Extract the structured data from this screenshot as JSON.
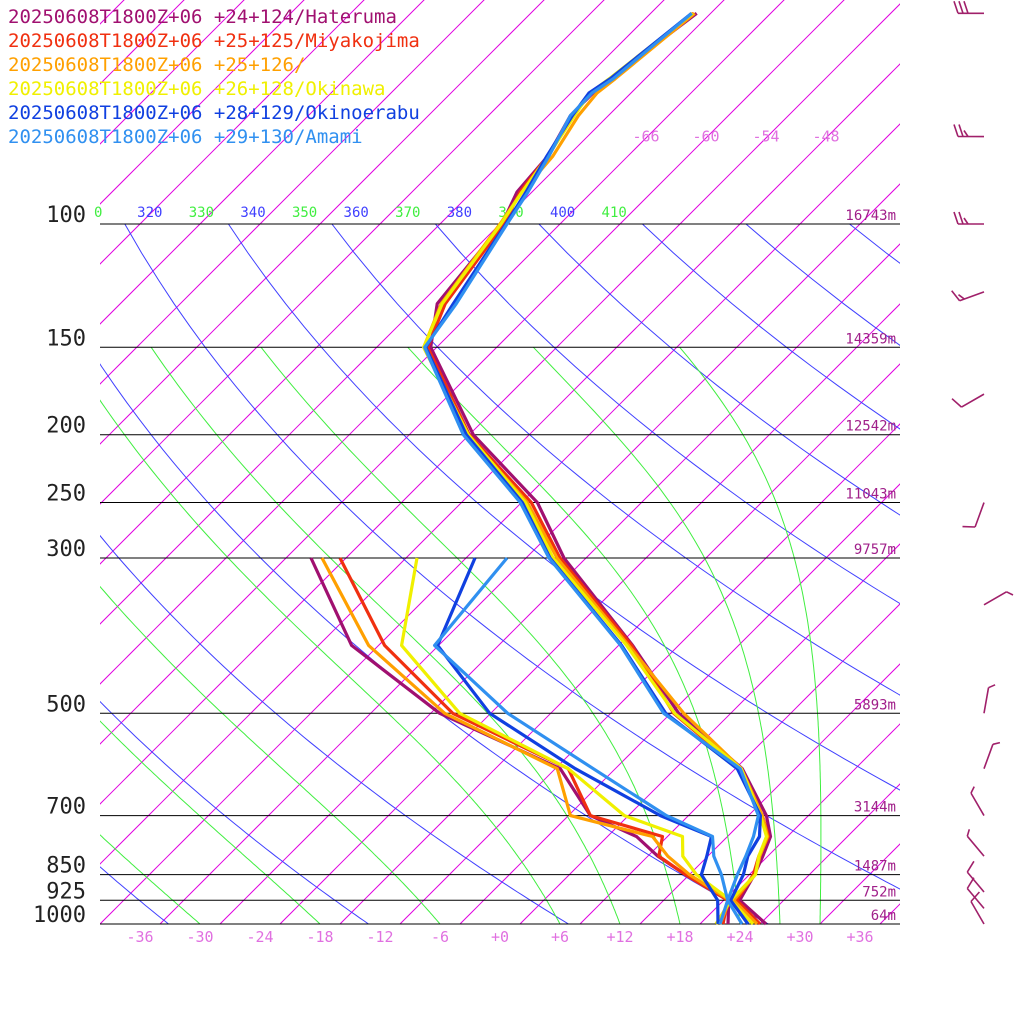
{
  "chart_data": {
    "type": "line",
    "title": "",
    "colors": {
      "background": "#ffffff",
      "isobar": "#000000",
      "isotherm": "#e000e0",
      "dry_adiabat": "#4040ff",
      "moist_adiabat": "#40ee40",
      "pressure_label": "#222222",
      "height_label": "#a0208a",
      "temp_tick": "#e070e0",
      "wind_barb": "#a0206a"
    },
    "legend": [
      {
        "label": "20250608T1800Z+06 +24+124/Hateruma",
        "color": "#a01070"
      },
      {
        "label": "20250608T1800Z+06 +25+125/Miyakojima",
        "color": "#f03010"
      },
      {
        "label": "20250608T1800Z+06 +25+126/",
        "color": "#ffa000"
      },
      {
        "label": "20250608T1800Z+06 +26+128/Okinawa",
        "color": "#f0f000"
      },
      {
        "label": "20250608T1800Z+06 +28+129/Okinoerabu",
        "color": "#1040e0"
      },
      {
        "label": "20250608T1800Z+06 +29+130/Amami",
        "color": "#3090f0"
      }
    ],
    "pressure_levels": [
      {
        "p": 100,
        "label": "100",
        "height": "16743m"
      },
      {
        "p": 150,
        "label": "150",
        "height": "14359m"
      },
      {
        "p": 200,
        "label": "200",
        "height": "12542m"
      },
      {
        "p": 250,
        "label": "250",
        "height": "11043m"
      },
      {
        "p": 300,
        "label": "300",
        "height": "9757m"
      },
      {
        "p": 500,
        "label": "500",
        "height": "5893m"
      },
      {
        "p": 700,
        "label": "700",
        "height": "3144m"
      },
      {
        "p": 850,
        "label": "850",
        "height": "1487m"
      },
      {
        "p": 925,
        "label": "925",
        "height": "752m"
      },
      {
        "p": 1000,
        "label": "1000",
        "height": "64m"
      }
    ],
    "x_ticks": [
      "-36",
      "-30",
      "-24",
      "-18",
      "-12",
      "-6",
      "+0",
      "+6",
      "+12",
      "+18",
      "+24",
      "+30",
      "+36"
    ],
    "x_tick_values": [
      -36,
      -30,
      -24,
      -18,
      -12,
      -6,
      0,
      6,
      12,
      18,
      24,
      30,
      36
    ],
    "upper_temp_labels": [
      "-66",
      "-60",
      "-54",
      "-48"
    ],
    "theta_labels": [
      {
        "text": "0",
        "color": "#40ee40"
      },
      {
        "text": "320",
        "color": "#4040ff"
      },
      {
        "text": "330",
        "color": "#40ee40"
      },
      {
        "text": "340",
        "color": "#4040ff"
      },
      {
        "text": "350",
        "color": "#40ee40"
      },
      {
        "text": "360",
        "color": "#4040ff"
      },
      {
        "text": "370",
        "color": "#40ee40"
      },
      {
        "text": "380",
        "color": "#4040ff"
      },
      {
        "text": "390",
        "color": "#40ee40"
      },
      {
        "text": "400",
        "color": "#4040ff"
      },
      {
        "text": "410",
        "color": "#40ee40"
      }
    ],
    "xlim": [
      -36,
      40
    ],
    "ylim": [
      1000,
      100
    ],
    "series": [
      {
        "name": "20250608T1800Z+06 +24+124/Hateruma",
        "color": "#a01070",
        "temperature": [
          [
            1000,
            26.6
          ],
          [
            925,
            21.6
          ],
          [
            850,
            20.5
          ],
          [
            800,
            19.5
          ],
          [
            750,
            18.3
          ],
          [
            700,
            15.8
          ],
          [
            600,
            8.7
          ],
          [
            500,
            -3.2
          ],
          [
            400,
            -14.6
          ],
          [
            300,
            -30.2
          ],
          [
            250,
            -38.4
          ],
          [
            200,
            -51.6
          ],
          [
            150,
            -64.6
          ],
          [
            130,
            -68.3
          ],
          [
            100,
            -69.8
          ],
          [
            90,
            -71.5
          ],
          [
            80,
            -72.0
          ],
          [
            70,
            -73.8
          ],
          [
            65,
            -73.8
          ],
          [
            62,
            -73.5
          ],
          [
            50,
            -71.4
          ]
        ],
        "dewpoint": [
          [
            1000,
            22.8
          ],
          [
            925,
            20.5
          ],
          [
            850,
            13.6
          ],
          [
            800,
            9.0
          ],
          [
            750,
            4.9
          ],
          [
            700,
            -1.8
          ],
          [
            600,
            -9.5
          ],
          [
            500,
            -27.1
          ],
          [
            400,
            -42.7
          ],
          [
            300,
            -55.5
          ]
        ]
      },
      {
        "name": "20250608T1800Z+06 +25+125/Miyakojima",
        "color": "#f03010",
        "temperature": [
          [
            1000,
            26.0
          ],
          [
            925,
            21.3
          ],
          [
            850,
            20.4
          ],
          [
            800,
            19.1
          ],
          [
            750,
            18.1
          ],
          [
            700,
            15.4
          ],
          [
            600,
            8.4
          ],
          [
            500,
            -3.7
          ],
          [
            400,
            -14.7
          ],
          [
            300,
            -30.6
          ],
          [
            250,
            -39.0
          ],
          [
            200,
            -52.0
          ],
          [
            150,
            -64.9
          ],
          [
            130,
            -67.5
          ],
          [
            100,
            -69.6
          ],
          [
            90,
            -71.2
          ],
          [
            80,
            -72.0
          ],
          [
            70,
            -73.5
          ],
          [
            65,
            -74.1
          ],
          [
            62,
            -73.5
          ],
          [
            50,
            -71.7
          ]
        ],
        "dewpoint": [
          [
            1000,
            22.3
          ],
          [
            925,
            20.4
          ],
          [
            850,
            13.6
          ],
          [
            800,
            9.1
          ],
          [
            750,
            7.5
          ],
          [
            700,
            -1.8
          ],
          [
            600,
            -8.7
          ],
          [
            500,
            -25.8
          ],
          [
            400,
            -39.4
          ],
          [
            300,
            -52.6
          ]
        ]
      },
      {
        "name": "20250608T1800Z+06 +25+126/",
        "color": "#ffa000",
        "temperature": [
          [
            1000,
            25.7
          ],
          [
            925,
            21.0
          ],
          [
            850,
            20.6
          ],
          [
            800,
            19.2
          ],
          [
            750,
            18.0
          ],
          [
            700,
            15.4
          ],
          [
            600,
            8.6
          ],
          [
            500,
            -2.7
          ],
          [
            400,
            -15.0
          ],
          [
            300,
            -30.9
          ],
          [
            250,
            -39.4
          ],
          [
            200,
            -52.2
          ],
          [
            150,
            -65.3
          ],
          [
            130,
            -67.9
          ],
          [
            100,
            -70.0
          ],
          [
            90,
            -71.0
          ],
          [
            80,
            -71.5
          ],
          [
            70,
            -73.0
          ],
          [
            65,
            -73.4
          ],
          [
            62,
            -73.0
          ],
          [
            50,
            -71.6
          ]
        ],
        "dewpoint": [
          [
            1000,
            22.0
          ],
          [
            925,
            20.6
          ],
          [
            850,
            14.0
          ],
          [
            800,
            10.0
          ],
          [
            750,
            6.5
          ],
          [
            700,
            -3.8
          ],
          [
            600,
            -9.8
          ],
          [
            500,
            -26.6
          ],
          [
            400,
            -41.0
          ],
          [
            300,
            -54.4
          ]
        ]
      },
      {
        "name": "20250608T1800Z+06 +26+128/Okinawa",
        "color": "#f0f000",
        "temperature": [
          [
            1000,
            25.3
          ],
          [
            925,
            20.7
          ],
          [
            850,
            20.6
          ],
          [
            800,
            19.1
          ],
          [
            750,
            17.9
          ],
          [
            700,
            15.2
          ],
          [
            600,
            8.6
          ],
          [
            500,
            -3.6
          ],
          [
            400,
            -15.2
          ],
          [
            300,
            -31.3
          ],
          [
            250,
            -39.6
          ],
          [
            200,
            -52.1
          ],
          [
            150,
            -65.3
          ],
          [
            130,
            -67.8
          ],
          [
            100,
            -69.9
          ],
          [
            90,
            -71.0
          ],
          [
            80,
            -72.0
          ],
          [
            70,
            -73.4
          ],
          [
            65,
            -74.1
          ],
          [
            62,
            -73.6
          ],
          [
            50,
            -71.8
          ]
        ],
        "dewpoint": [
          [
            1000,
            21.6
          ],
          [
            925,
            20.7
          ],
          [
            850,
            14.7
          ],
          [
            800,
            11.5
          ],
          [
            750,
            9.5
          ],
          [
            700,
            1.6
          ],
          [
            600,
            -8.7
          ],
          [
            500,
            -25.1
          ],
          [
            400,
            -37.7
          ],
          [
            300,
            -44.9
          ]
        ]
      },
      {
        "name": "20250608T1800Z+06 +28+129/Okinoerabu",
        "color": "#1040e0",
        "temperature": [
          [
            1000,
            24.8
          ],
          [
            925,
            20.7
          ],
          [
            850,
            19.4
          ],
          [
            800,
            18.0
          ],
          [
            750,
            17.2
          ],
          [
            700,
            15.2
          ],
          [
            600,
            8.2
          ],
          [
            500,
            -4.5
          ],
          [
            400,
            -15.7
          ],
          [
            300,
            -31.6
          ],
          [
            250,
            -39.9
          ],
          [
            200,
            -52.3
          ],
          [
            150,
            -65.1
          ],
          [
            130,
            -66.7
          ],
          [
            100,
            -69.4
          ],
          [
            90,
            -70.6
          ],
          [
            80,
            -72.1
          ],
          [
            70,
            -73.6
          ],
          [
            65,
            -74.2
          ],
          [
            62,
            -73.5
          ],
          [
            50,
            -71.9
          ]
        ],
        "dewpoint": [
          [
            1000,
            21.8
          ],
          [
            925,
            19.4
          ],
          [
            850,
            15.2
          ],
          [
            800,
            13.9
          ],
          [
            750,
            12.4
          ],
          [
            700,
            5.2
          ],
          [
            600,
            -8.0
          ],
          [
            500,
            -22.1
          ],
          [
            400,
            -34.1
          ],
          [
            300,
            -39.1
          ]
        ]
      },
      {
        "name": "20250608T1800Z+06 +29+130/Amami",
        "color": "#3090f0",
        "temperature": [
          [
            1000,
            24.2
          ],
          [
            925,
            20.4
          ],
          [
            850,
            18.8
          ],
          [
            800,
            17.8
          ],
          [
            750,
            16.6
          ],
          [
            700,
            15.0
          ],
          [
            600,
            8.5
          ],
          [
            500,
            -4.7
          ],
          [
            400,
            -15.8
          ],
          [
            300,
            -31.7
          ],
          [
            250,
            -40.1
          ],
          [
            200,
            -52.6
          ],
          [
            150,
            -65.2
          ],
          [
            130,
            -66.4
          ],
          [
            100,
            -69.3
          ],
          [
            90,
            -70.4
          ],
          [
            80,
            -71.9
          ],
          [
            70,
            -73.8
          ],
          [
            65,
            -73.9
          ],
          [
            62,
            -73.2
          ],
          [
            50,
            -71.9
          ]
        ],
        "dewpoint": [
          [
            1000,
            22.0
          ],
          [
            925,
            20.4
          ],
          [
            850,
            17.2
          ],
          [
            800,
            14.6
          ],
          [
            750,
            12.5
          ],
          [
            700,
            5.8
          ],
          [
            600,
            -6.2
          ],
          [
            500,
            -20.3
          ],
          [
            400,
            -34.4
          ],
          [
            300,
            -35.9
          ]
        ]
      }
    ],
    "wind_barbs": [
      {
        "p": 50,
        "dir": 270,
        "speed": 30
      },
      {
        "p": 75,
        "dir": 270,
        "speed": 25
      },
      {
        "p": 100,
        "dir": 270,
        "speed": 25
      },
      {
        "p": 125,
        "dir": 250,
        "speed": 15
      },
      {
        "p": 175,
        "dir": 240,
        "speed": 10
      },
      {
        "p": 250,
        "dir": 200,
        "speed": 10
      },
      {
        "p": 350,
        "dir": 60,
        "speed": 5
      },
      {
        "p": 500,
        "dir": 10,
        "speed": 5
      },
      {
        "p": 600,
        "dir": 20,
        "speed": 5
      },
      {
        "p": 700,
        "dir": 330,
        "speed": 5
      },
      {
        "p": 800,
        "dir": 320,
        "speed": 5
      },
      {
        "p": 900,
        "dir": 320,
        "speed": 10
      },
      {
        "p": 950,
        "dir": 320,
        "speed": 10
      },
      {
        "p": 1000,
        "dir": 330,
        "speed": 10
      }
    ]
  }
}
